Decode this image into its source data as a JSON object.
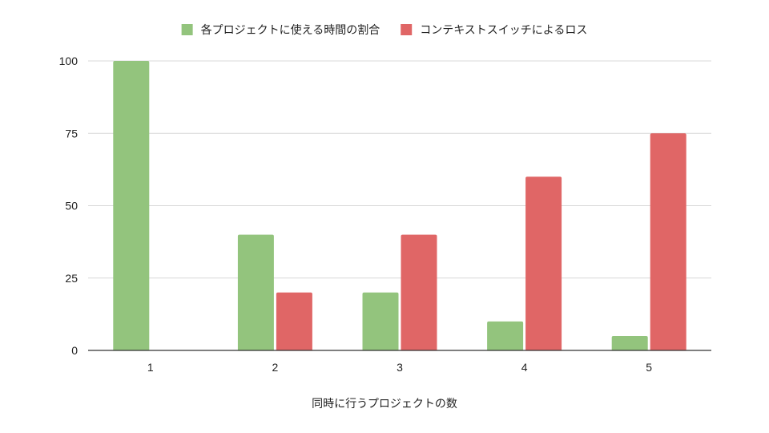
{
  "chart_data": {
    "type": "bar",
    "title": "",
    "xlabel": "同時に行うプロジェクトの数",
    "ylabel": "",
    "categories": [
      "1",
      "2",
      "3",
      "4",
      "5"
    ],
    "series": [
      {
        "name": "各プロジェクトに使える時間の割合",
        "color": "#93c47d",
        "values": [
          100,
          40,
          20,
          10,
          5
        ]
      },
      {
        "name": "コンテキストスイッチによるロス",
        "color": "#e06666",
        "values": [
          0,
          20,
          40,
          60,
          75
        ]
      }
    ],
    "ylim": [
      0,
      100
    ],
    "yticks": [
      0,
      25,
      50,
      75,
      100
    ],
    "grid": true,
    "legend_position": "top-center"
  }
}
